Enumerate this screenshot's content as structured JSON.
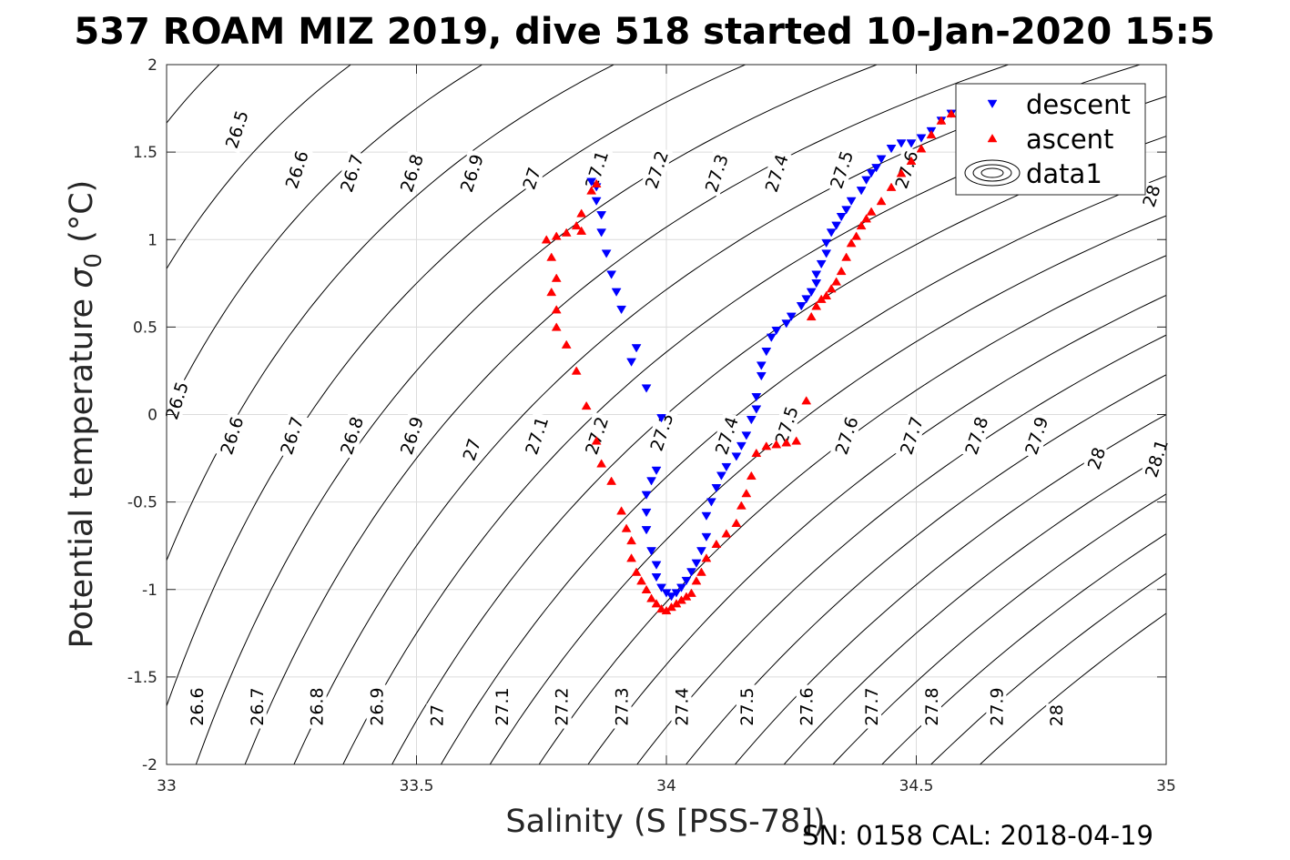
{
  "chart_data": {
    "type": "scatter",
    "title": "537 ROAM MIZ 2019, dive 518 started 10-Jan-2020 15:5",
    "xlabel": "Salinity (S [PSS-78])",
    "ylabel": "Potential temperature σ 0 (°C)",
    "ylabel_main": "Potential temperature ",
    "ylabel_sigma": "σ",
    "ylabel_sub": "0",
    "ylabel_unit": " (°C)",
    "xlim": [
      33,
      35
    ],
    "ylim": [
      -2,
      2
    ],
    "xticks": [
      33,
      33.5,
      34,
      34.5,
      35
    ],
    "yticks": [
      -2,
      -1.5,
      -1,
      -0.5,
      0,
      0.5,
      1,
      1.5,
      2
    ],
    "xtick_labels": [
      "33",
      "33.5",
      "34",
      "34.5",
      "35"
    ],
    "ytick_labels": [
      "-2",
      "-1.5",
      "-1",
      "-0.5",
      "0",
      "0.5",
      "1",
      "1.5",
      "2"
    ],
    "grid": true,
    "legend_position": "top-right",
    "footer": "SN: 0158  CAL: 2018-04-19",
    "series": [
      {
        "name": "descent",
        "marker": "triangle-down",
        "color": "#0000ff",
        "points": [
          [
            34.59,
            1.76
          ],
          [
            34.57,
            1.72
          ],
          [
            34.55,
            1.68
          ],
          [
            34.53,
            1.62
          ],
          [
            34.51,
            1.58
          ],
          [
            34.49,
            1.55
          ],
          [
            34.47,
            1.55
          ],
          [
            34.45,
            1.52
          ],
          [
            34.43,
            1.46
          ],
          [
            34.42,
            1.41
          ],
          [
            34.41,
            1.38
          ],
          [
            34.4,
            1.34
          ],
          [
            34.39,
            1.28
          ],
          [
            34.37,
            1.22
          ],
          [
            34.36,
            1.17
          ],
          [
            34.35,
            1.13
          ],
          [
            34.34,
            1.08
          ],
          [
            34.33,
            1.04
          ],
          [
            34.32,
            0.98
          ],
          [
            34.32,
            0.92
          ],
          [
            34.31,
            0.86
          ],
          [
            34.3,
            0.8
          ],
          [
            34.3,
            0.75
          ],
          [
            34.29,
            0.7
          ],
          [
            34.28,
            0.66
          ],
          [
            34.27,
            0.62
          ],
          [
            34.25,
            0.56
          ],
          [
            34.24,
            0.52
          ],
          [
            34.22,
            0.48
          ],
          [
            34.21,
            0.44
          ],
          [
            34.2,
            0.36
          ],
          [
            34.19,
            0.28
          ],
          [
            34.19,
            0.22
          ],
          [
            34.18,
            0.1
          ],
          [
            34.18,
            0.03
          ],
          [
            34.17,
            -0.03
          ],
          [
            34.16,
            -0.12
          ],
          [
            34.15,
            -0.18
          ],
          [
            34.14,
            -0.24
          ],
          [
            34.12,
            -0.3
          ],
          [
            34.11,
            -0.35
          ],
          [
            34.1,
            -0.42
          ],
          [
            34.09,
            -0.5
          ],
          [
            34.08,
            -0.58
          ],
          [
            34.08,
            -0.7
          ],
          [
            34.07,
            -0.78
          ],
          [
            34.06,
            -0.85
          ],
          [
            34.05,
            -0.9
          ],
          [
            34.04,
            -0.95
          ],
          [
            34.03,
            -0.99
          ],
          [
            34.02,
            -1.02
          ],
          [
            34.01,
            -1.04
          ],
          [
            34.0,
            -1.02
          ],
          [
            33.99,
            -0.99
          ],
          [
            33.98,
            -0.93
          ],
          [
            33.98,
            -0.86
          ],
          [
            33.97,
            -0.78
          ],
          [
            33.96,
            -0.66
          ],
          [
            33.96,
            -0.56
          ],
          [
            33.96,
            -0.46
          ],
          [
            33.97,
            -0.38
          ],
          [
            33.98,
            -0.32
          ],
          [
            33.99,
            -0.02
          ],
          [
            33.96,
            0.15
          ],
          [
            33.94,
            0.38
          ],
          [
            33.93,
            0.3
          ],
          [
            33.91,
            0.6
          ],
          [
            33.9,
            0.7
          ],
          [
            33.89,
            0.8
          ],
          [
            33.88,
            0.92
          ],
          [
            33.87,
            1.04
          ],
          [
            33.87,
            1.14
          ],
          [
            33.86,
            1.22
          ],
          [
            33.86,
            1.3
          ],
          [
            33.85,
            1.33
          ]
        ]
      },
      {
        "name": "ascent",
        "marker": "triangle-up",
        "color": "#ff0000",
        "points": [
          [
            34.6,
            1.8
          ],
          [
            34.59,
            1.78
          ],
          [
            34.57,
            1.72
          ],
          [
            34.55,
            1.68
          ],
          [
            34.53,
            1.6
          ],
          [
            34.51,
            1.52
          ],
          [
            34.49,
            1.45
          ],
          [
            34.47,
            1.38
          ],
          [
            34.45,
            1.3
          ],
          [
            34.43,
            1.22
          ],
          [
            34.41,
            1.16
          ],
          [
            34.4,
            1.12
          ],
          [
            34.39,
            1.08
          ],
          [
            34.38,
            1.02
          ],
          [
            34.37,
            0.98
          ],
          [
            34.36,
            0.9
          ],
          [
            34.35,
            0.82
          ],
          [
            34.34,
            0.76
          ],
          [
            34.33,
            0.72
          ],
          [
            34.32,
            0.68
          ],
          [
            34.31,
            0.66
          ],
          [
            34.3,
            0.62
          ],
          [
            34.29,
            0.56
          ],
          [
            34.28,
            0.08
          ],
          [
            34.26,
            -0.15
          ],
          [
            34.24,
            -0.16
          ],
          [
            34.22,
            -0.17
          ],
          [
            34.2,
            -0.18
          ],
          [
            34.18,
            -0.22
          ],
          [
            34.17,
            -0.35
          ],
          [
            34.16,
            -0.45
          ],
          [
            34.15,
            -0.52
          ],
          [
            34.14,
            -0.62
          ],
          [
            34.12,
            -0.68
          ],
          [
            34.1,
            -0.74
          ],
          [
            34.08,
            -0.82
          ],
          [
            34.07,
            -0.9
          ],
          [
            34.06,
            -0.95
          ],
          [
            34.05,
            -1.02
          ],
          [
            34.04,
            -1.04
          ],
          [
            34.03,
            -1.06
          ],
          [
            34.02,
            -1.08
          ],
          [
            34.01,
            -1.1
          ],
          [
            34.0,
            -1.12
          ],
          [
            33.99,
            -1.11
          ],
          [
            33.98,
            -1.08
          ],
          [
            33.97,
            -1.05
          ],
          [
            33.96,
            -1.0
          ],
          [
            33.95,
            -0.95
          ],
          [
            33.94,
            -0.9
          ],
          [
            33.93,
            -0.82
          ],
          [
            33.93,
            -0.72
          ],
          [
            33.92,
            -0.65
          ],
          [
            33.91,
            -0.55
          ],
          [
            33.89,
            -0.38
          ],
          [
            33.87,
            -0.28
          ],
          [
            33.86,
            -0.15
          ],
          [
            33.84,
            0.05
          ],
          [
            33.82,
            0.25
          ],
          [
            33.8,
            0.4
          ],
          [
            33.78,
            0.5
          ],
          [
            33.78,
            0.6
          ],
          [
            33.77,
            0.7
          ],
          [
            33.78,
            0.78
          ],
          [
            33.77,
            0.9
          ],
          [
            33.76,
            1.0
          ],
          [
            33.78,
            1.02
          ],
          [
            33.8,
            1.04
          ],
          [
            33.82,
            1.08
          ],
          [
            33.83,
            1.05
          ],
          [
            33.83,
            1.15
          ],
          [
            33.85,
            1.28
          ],
          [
            33.86,
            1.32
          ]
        ]
      }
    ],
    "contour_lines": [
      {
        "kind": "isopycnal",
        "values": [
          "26.5",
          "26.6",
          "26.7",
          "26.8",
          "26.9",
          "27",
          "27.1",
          "27.2",
          "27.3",
          "27.4",
          "27.5",
          "27.6",
          "27.7",
          "27.8",
          "27.9",
          "28",
          "28.1"
        ]
      }
    ],
    "contour_labels": [
      {
        "text": "26.5",
        "s": 33.14,
        "t": 1.63,
        "rot": -72
      },
      {
        "text": "26.6",
        "s": 33.26,
        "t": 1.4,
        "rot": -72
      },
      {
        "text": "26.7",
        "s": 33.37,
        "t": 1.38,
        "rot": -72
      },
      {
        "text": "26.8",
        "s": 33.49,
        "t": 1.38,
        "rot": -72
      },
      {
        "text": "26.9",
        "s": 33.61,
        "t": 1.38,
        "rot": -72
      },
      {
        "text": "27",
        "s": 33.73,
        "t": 1.35,
        "rot": -72
      },
      {
        "text": "27.1",
        "s": 33.86,
        "t": 1.4,
        "rot": -72
      },
      {
        "text": "27.2",
        "s": 33.98,
        "t": 1.4,
        "rot": -72
      },
      {
        "text": "27.3",
        "s": 34.1,
        "t": 1.38,
        "rot": -72
      },
      {
        "text": "27.4",
        "s": 34.22,
        "t": 1.38,
        "rot": -72
      },
      {
        "text": "27.5",
        "s": 34.35,
        "t": 1.4,
        "rot": -72
      },
      {
        "text": "27.6",
        "s": 34.48,
        "t": 1.4,
        "rot": -72
      },
      {
        "text": "28",
        "s": 34.97,
        "t": 1.25,
        "rot": -72
      },
      {
        "text": "26.5",
        "s": 33.02,
        "t": 0.08,
        "rot": -72
      },
      {
        "text": "26.6",
        "s": 33.13,
        "t": -0.12,
        "rot": -72
      },
      {
        "text": "26.7",
        "s": 33.25,
        "t": -0.12,
        "rot": -72
      },
      {
        "text": "26.8",
        "s": 33.37,
        "t": -0.12,
        "rot": -72
      },
      {
        "text": "26.9",
        "s": 33.49,
        "t": -0.12,
        "rot": -72
      },
      {
        "text": "27",
        "s": 33.61,
        "t": -0.2,
        "rot": -72
      },
      {
        "text": "27.1",
        "s": 33.74,
        "t": -0.12,
        "rot": -72
      },
      {
        "text": "27.2",
        "s": 33.86,
        "t": -0.12,
        "rot": -72
      },
      {
        "text": "27.3",
        "s": 33.99,
        "t": -0.1,
        "rot": -72
      },
      {
        "text": "27.4",
        "s": 34.12,
        "t": -0.12,
        "rot": -72
      },
      {
        "text": "27.5",
        "s": 34.24,
        "t": -0.06,
        "rot": -72
      },
      {
        "text": "27.6",
        "s": 34.36,
        "t": -0.12,
        "rot": -72
      },
      {
        "text": "27.7",
        "s": 34.49,
        "t": -0.12,
        "rot": -72
      },
      {
        "text": "27.8",
        "s": 34.62,
        "t": -0.12,
        "rot": -72
      },
      {
        "text": "27.9",
        "s": 34.74,
        "t": -0.12,
        "rot": -72
      },
      {
        "text": "28",
        "s": 34.86,
        "t": -0.25,
        "rot": -72
      },
      {
        "text": "28.1",
        "s": 34.98,
        "t": -0.25,
        "rot": -72
      },
      {
        "text": "26.6",
        "s": 33.06,
        "t": -1.67,
        "rot": -90
      },
      {
        "text": "26.7",
        "s": 33.18,
        "t": -1.67,
        "rot": -90
      },
      {
        "text": "26.8",
        "s": 33.3,
        "t": -1.67,
        "rot": -90
      },
      {
        "text": "26.9",
        "s": 33.42,
        "t": -1.67,
        "rot": -90
      },
      {
        "text": "27",
        "s": 33.54,
        "t": -1.72,
        "rot": -90
      },
      {
        "text": "27.1",
        "s": 33.67,
        "t": -1.67,
        "rot": -90
      },
      {
        "text": "27.2",
        "s": 33.79,
        "t": -1.67,
        "rot": -90
      },
      {
        "text": "27.3",
        "s": 33.91,
        "t": -1.67,
        "rot": -90
      },
      {
        "text": "27.4",
        "s": 34.03,
        "t": -1.67,
        "rot": -90
      },
      {
        "text": "27.5",
        "s": 34.16,
        "t": -1.67,
        "rot": -90
      },
      {
        "text": "27.6",
        "s": 34.28,
        "t": -1.67,
        "rot": -90
      },
      {
        "text": "27.7",
        "s": 34.41,
        "t": -1.67,
        "rot": -90
      },
      {
        "text": "27.8",
        "s": 34.53,
        "t": -1.67,
        "rot": -90
      },
      {
        "text": "27.9",
        "s": 34.66,
        "t": -1.67,
        "rot": -90
      },
      {
        "text": "28",
        "s": 34.78,
        "t": -1.72,
        "rot": -90
      }
    ],
    "legend": {
      "entries": [
        {
          "label": "descent",
          "marker": "triangle-down",
          "color": "#0000ff"
        },
        {
          "label": "ascent",
          "marker": "triangle-up",
          "color": "#ff0000"
        },
        {
          "label": "data1",
          "marker": "contour",
          "color": "#000000"
        }
      ]
    }
  }
}
